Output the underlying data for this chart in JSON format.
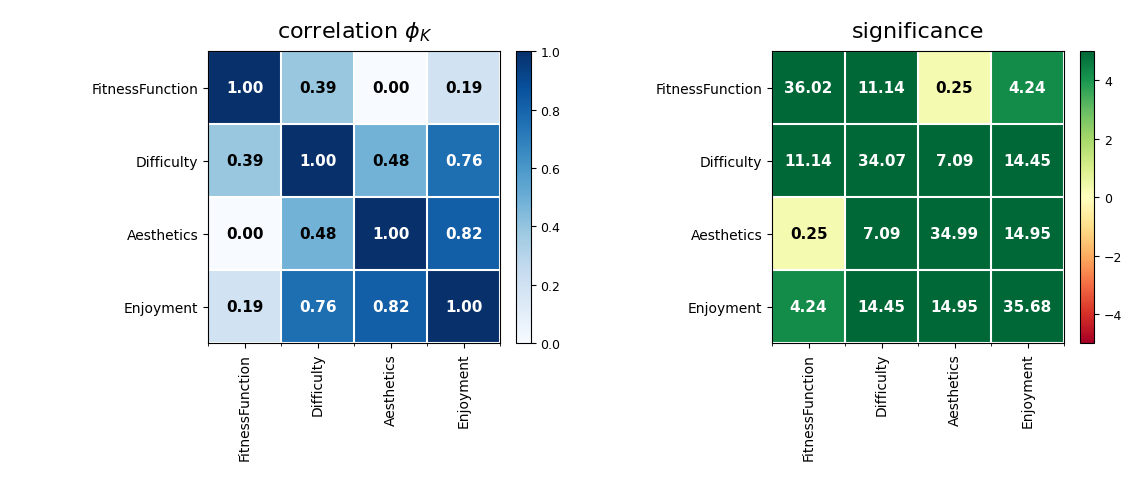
{
  "labels": [
    "FitnessFunction",
    "Difficulty",
    "Aesthetics",
    "Enjoyment"
  ],
  "corr_matrix": [
    [
      1.0,
      0.39,
      0.0,
      0.19
    ],
    [
      0.39,
      1.0,
      0.48,
      0.76
    ],
    [
      0.0,
      0.48,
      1.0,
      0.82
    ],
    [
      0.19,
      0.76,
      0.82,
      1.0
    ]
  ],
  "sig_matrix": [
    [
      36.02,
      11.14,
      0.25,
      4.24
    ],
    [
      11.14,
      34.07,
      7.09,
      14.45
    ],
    [
      0.25,
      7.09,
      34.99,
      14.95
    ],
    [
      4.24,
      14.45,
      14.95,
      35.68
    ]
  ],
  "corr_title": "correlation $\\phi_K$",
  "sig_title": "significance",
  "corr_cmap": "Blues",
  "sig_cmap": "RdYlGn",
  "corr_vmin": 0.0,
  "corr_vmax": 1.0,
  "sig_vmin": -5,
  "sig_vmax": 5,
  "corr_text_color_threshold": 0.5,
  "sig_text_color_threshold": 3.0,
  "fig_width": 11.47,
  "fig_height": 4.81,
  "title_fontsize": 16,
  "tick_fontsize": 10,
  "cell_fontsize": 11,
  "corr_cbar_ticks": [
    0.0,
    0.2,
    0.4,
    0.6,
    0.8,
    1.0
  ],
  "sig_cbar_ticks": [
    -4,
    -2,
    0,
    2,
    4
  ]
}
